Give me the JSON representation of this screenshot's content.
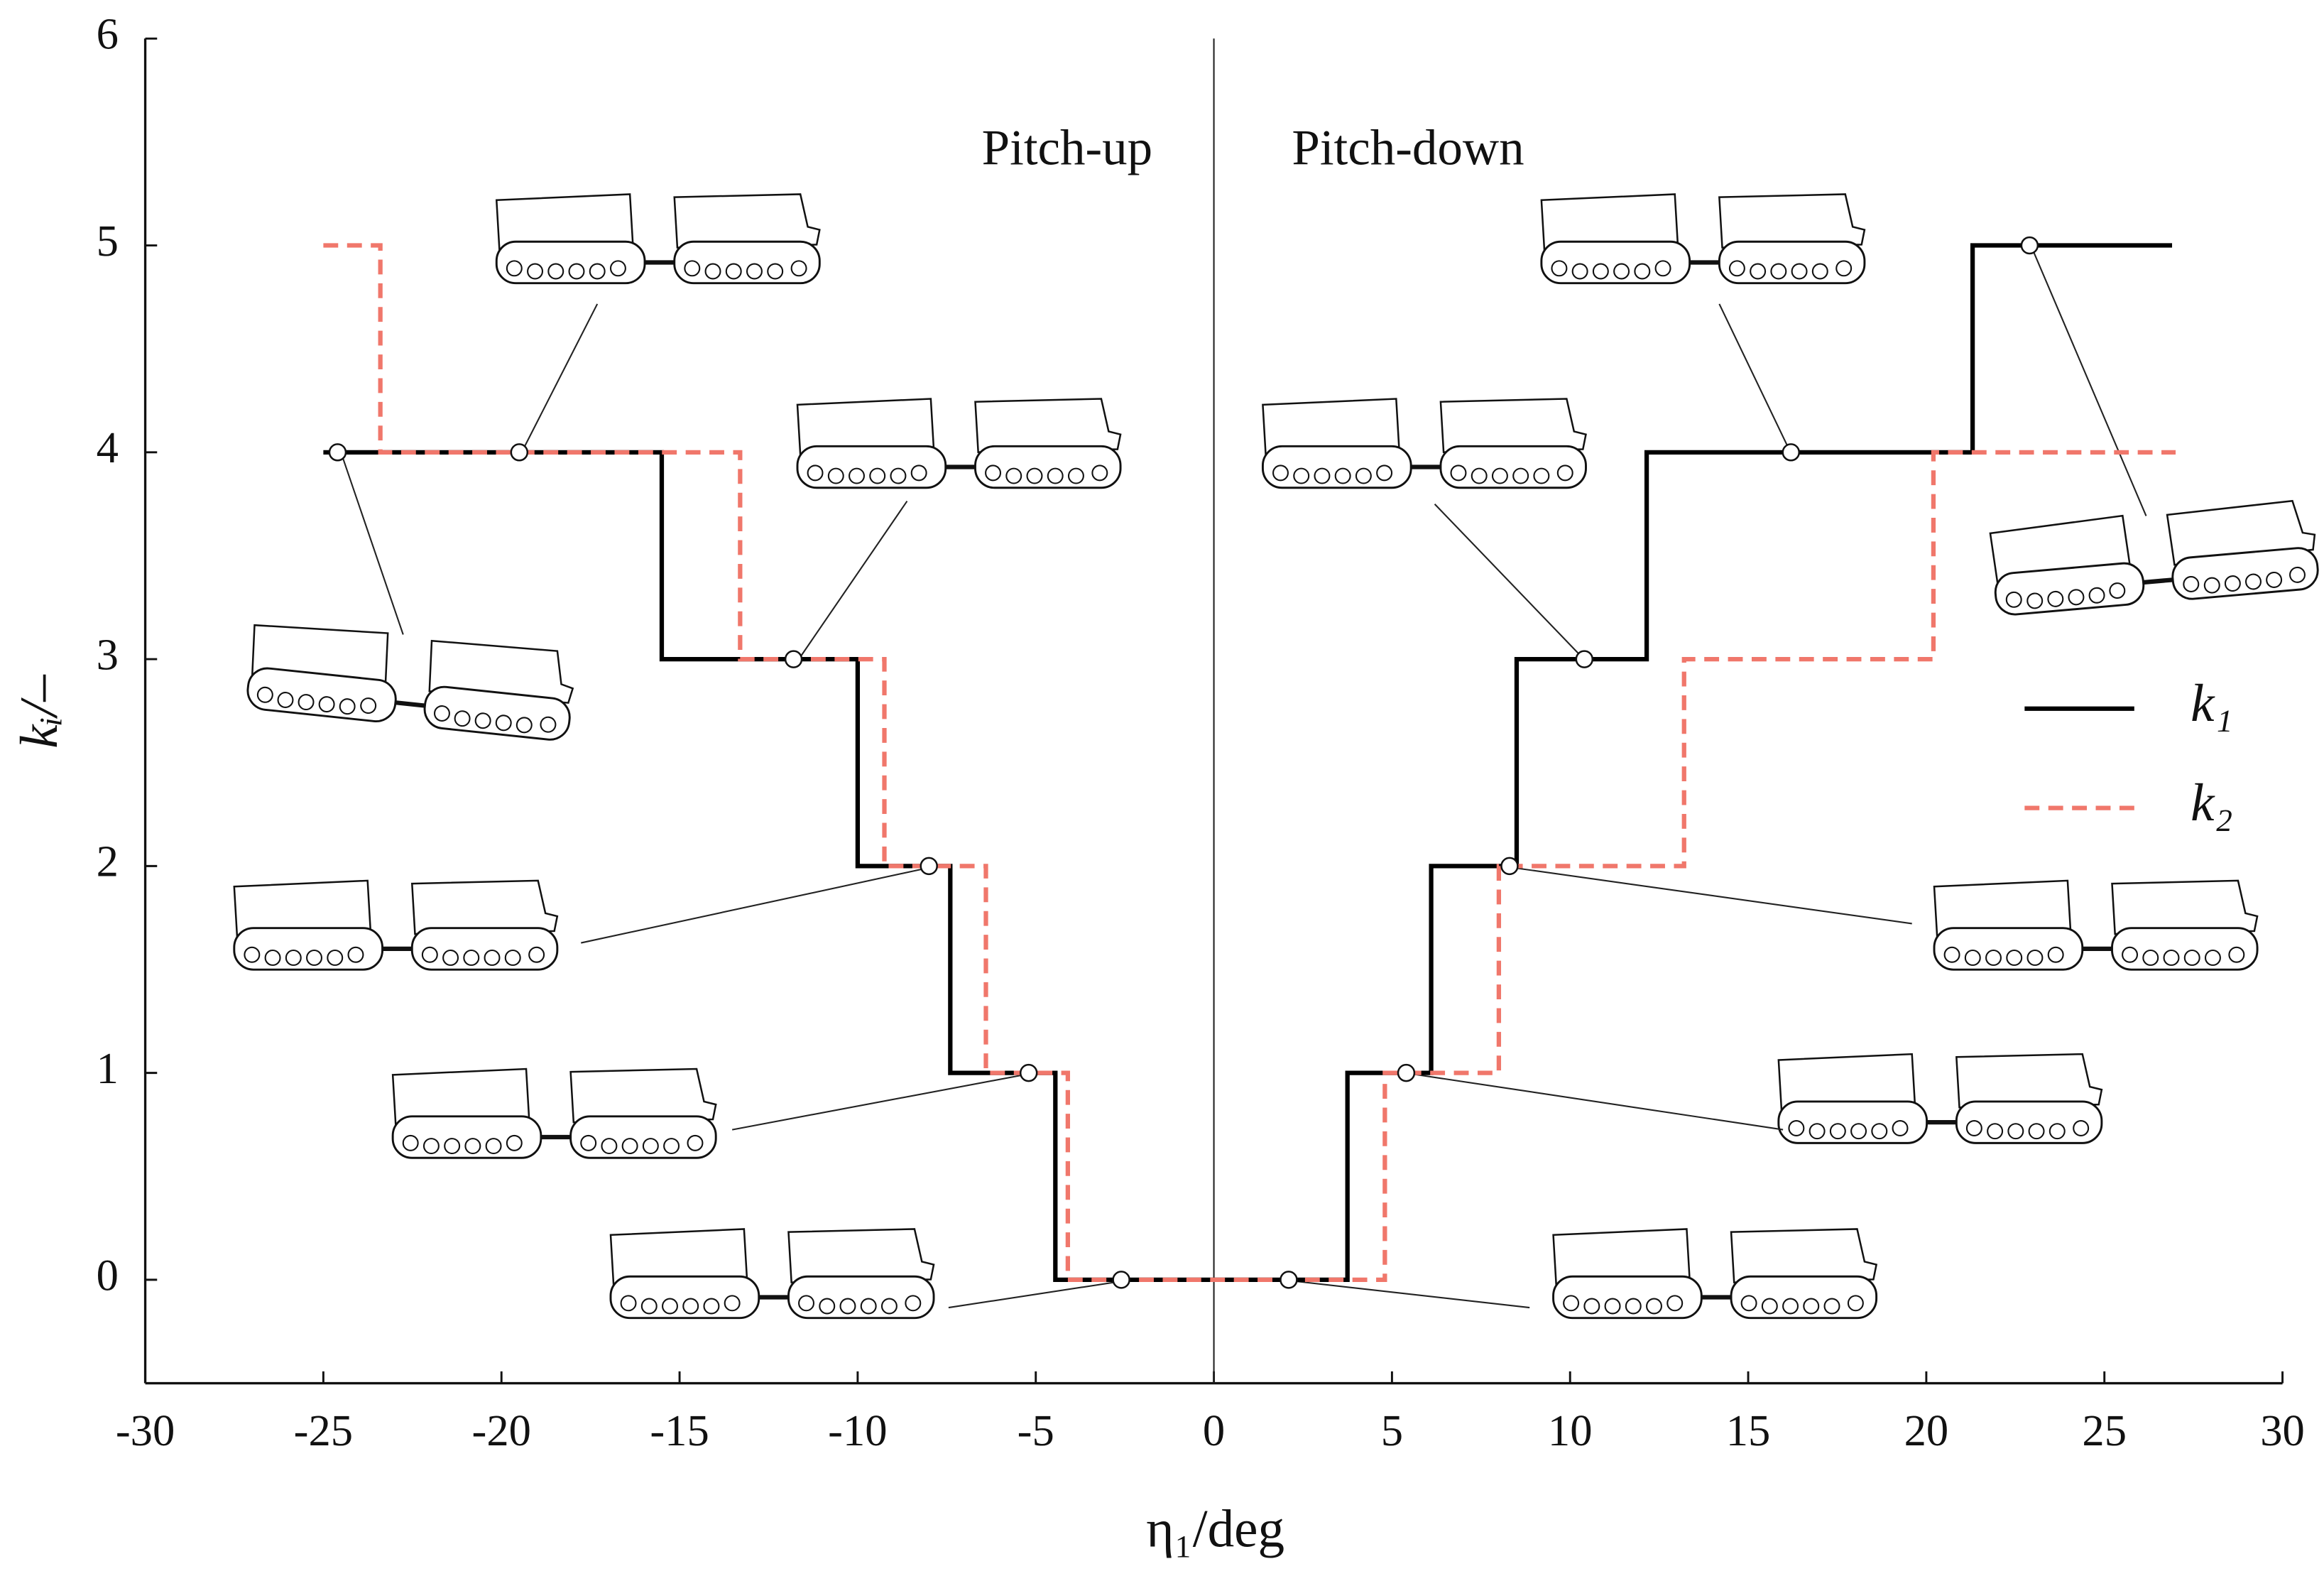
{
  "chart_data": {
    "type": "step",
    "x_label": "η₁/deg",
    "y_label": "kᵢ/–",
    "annotations": [
      "Pitch-up",
      "Pitch-down"
    ],
    "xlim": [
      -30,
      30
    ],
    "ylim": [
      -0.5,
      6
    ],
    "xticks": [
      -30,
      -25,
      -20,
      -15,
      -10,
      -5,
      0,
      5,
      10,
      15,
      20,
      25,
      30
    ],
    "yticks": [
      0,
      1,
      2,
      3,
      4,
      5,
      6
    ],
    "legend": "right",
    "series": [
      {
        "name": "k₁",
        "color": "#000000",
        "dash": false,
        "x": [
          -25,
          -15.5,
          -10,
          -7.4,
          -4.45,
          3.75,
          6.1,
          8.5,
          12.15,
          21.3,
          26.9
        ],
        "values": [
          4,
          3,
          2,
          1,
          0,
          1,
          2,
          3,
          4,
          5,
          5
        ]
      },
      {
        "name": "k₂",
        "color": "#f0776b",
        "dash": true,
        "x": [
          -25,
          -23.4,
          -13.3,
          -9.25,
          -6.4,
          -4.1,
          4.8,
          8.0,
          13.2,
          20.2,
          27
        ],
        "values": [
          5,
          4,
          3,
          2,
          1,
          0,
          1,
          2,
          3,
          4,
          4
        ]
      }
    ],
    "markers": {
      "x": [
        -24.6,
        -19.5,
        -11.8,
        -8,
        -5.2,
        -2.6,
        2.1,
        5.4,
        8.3,
        10.4,
        16.2,
        22.9
      ],
      "y": [
        4,
        4,
        3,
        2,
        1,
        0,
        0,
        1,
        2,
        3,
        4,
        5
      ]
    }
  }
}
